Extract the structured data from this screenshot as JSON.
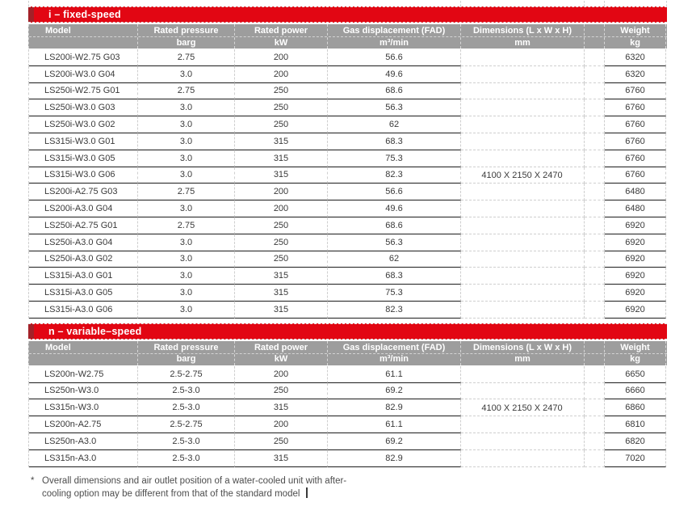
{
  "columns": [
    {
      "label": "Model",
      "unit": ""
    },
    {
      "label": "Rated pressure",
      "unit": "barg"
    },
    {
      "label": "Rated power",
      "unit": "kW"
    },
    {
      "label": "Gas displacement (FAD)",
      "unit": "m³/min"
    },
    {
      "label": "Dimensions (L x W x H)",
      "unit": "mm"
    },
    {
      "label": "",
      "unit": ""
    },
    {
      "label": "Weight",
      "unit": "kg"
    }
  ],
  "tables": [
    {
      "title": "i – fixed-speed",
      "dimensions": "4100 X 2150 X 2470",
      "rows": [
        [
          "LS200i-W2.75 G03",
          "2.75",
          "200",
          "56.6",
          "6320"
        ],
        [
          "LS200i-W3.0 G04",
          "3.0",
          "200",
          "49.6",
          "6320"
        ],
        [
          "LS250i-W2.75 G01",
          "2.75",
          "250",
          "68.6",
          "6760"
        ],
        [
          "LS250i-W3.0 G03",
          "3.0",
          "250",
          "56.3",
          "6760"
        ],
        [
          "LS250i-W3.0 G02",
          "3.0",
          "250",
          "62",
          "6760"
        ],
        [
          "LS315i-W3.0 G01",
          "3.0",
          "315",
          "68.3",
          "6760"
        ],
        [
          "LS315i-W3.0 G05",
          "3.0",
          "315",
          "75.3",
          "6760"
        ],
        [
          "LS315i-W3.0 G06",
          "3.0",
          "315",
          "82.3",
          "6760"
        ],
        [
          "LS200i-A2.75 G03",
          "2.75",
          "200",
          "56.6",
          "6480"
        ],
        [
          "LS200i-A3.0 G04",
          "3.0",
          "200",
          "49.6",
          "6480"
        ],
        [
          "LS250i-A2.75 G01",
          "2.75",
          "250",
          "68.6",
          "6920"
        ],
        [
          "LS250i-A3.0 G04",
          "3.0",
          "250",
          "56.3",
          "6920"
        ],
        [
          "LS250i-A3.0 G02",
          "3.0",
          "250",
          "62",
          "6920"
        ],
        [
          "LS315i-A3.0 G01",
          "3.0",
          "315",
          "68.3",
          "6920"
        ],
        [
          "LS315i-A3.0 G05",
          "3.0",
          "315",
          "75.3",
          "6920"
        ],
        [
          "LS315i-A3.0 G06",
          "3.0",
          "315",
          "82.3",
          "6920"
        ]
      ]
    },
    {
      "title": "n – variable–speed",
      "dimensions": "4100 X 2150 X 2470",
      "rows": [
        [
          "LS200n-W2.75",
          "2.5-2.75",
          "200",
          "61.1",
          "6650"
        ],
        [
          "LS250n-W3.0",
          "2.5-3.0",
          "250",
          "69.2",
          "6660"
        ],
        [
          "LS315n-W3.0",
          "2.5-3.0",
          "315",
          "82.9",
          "6860"
        ],
        [
          "LS200n-A2.75",
          "2.5-2.75",
          "200",
          "61.1",
          "6810"
        ],
        [
          "LS250n-A3.0",
          "2.5-3.0",
          "250",
          "69.2",
          "6820"
        ],
        [
          "LS315n-A3.0",
          "2.5-3.0",
          "315",
          "82.9",
          "7020"
        ]
      ]
    }
  ],
  "footnote": {
    "marker": "*",
    "line1": "Overall dimensions and air outlet position of a water-cooled unit with after-",
    "line2": "cooling option may be different from that of the standard model"
  },
  "colors": {
    "band_red": "#E20613",
    "band_dark_red": "#A32128",
    "header_gray": "#9D9D9D",
    "row_line": "#1C1C1C",
    "gridline": "#CFCFCF"
  }
}
